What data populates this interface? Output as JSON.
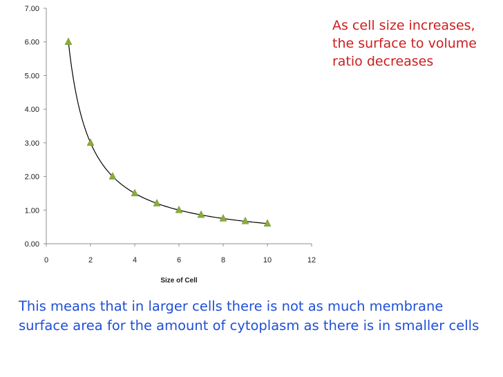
{
  "chart_data": {
    "type": "scatter",
    "title": "",
    "xlabel": "Size of Cell",
    "ylabel": "",
    "xlim": [
      0,
      12
    ],
    "ylim": [
      0,
      7
    ],
    "x_ticks": [
      "0",
      "2",
      "4",
      "6",
      "8",
      "10",
      "12"
    ],
    "y_ticks": [
      "0.00",
      "1.00",
      "2.00",
      "3.00",
      "4.00",
      "5.00",
      "6.00",
      "7.00"
    ],
    "grid": false,
    "legend": "none",
    "marker": "triangle",
    "marker_color": "#8aac3c",
    "trendline": true,
    "series": [
      {
        "x": [
          1,
          2,
          3,
          4,
          5,
          6,
          7,
          8,
          9,
          10
        ],
        "y": [
          6.0,
          3.0,
          2.0,
          1.5,
          1.2,
          1.0,
          0.86,
          0.75,
          0.67,
          0.6
        ]
      }
    ]
  },
  "annotation": {
    "lines": [
      "As cell size increases,",
      "the surface to volume",
      "ratio decreases"
    ],
    "color": "#cc1d1d"
  },
  "footer": {
    "text": "This means that in larger cells there is not as much membrane surface area for the amount of cytoplasm as there is in smaller cells",
    "color": "#1f4fd6"
  }
}
